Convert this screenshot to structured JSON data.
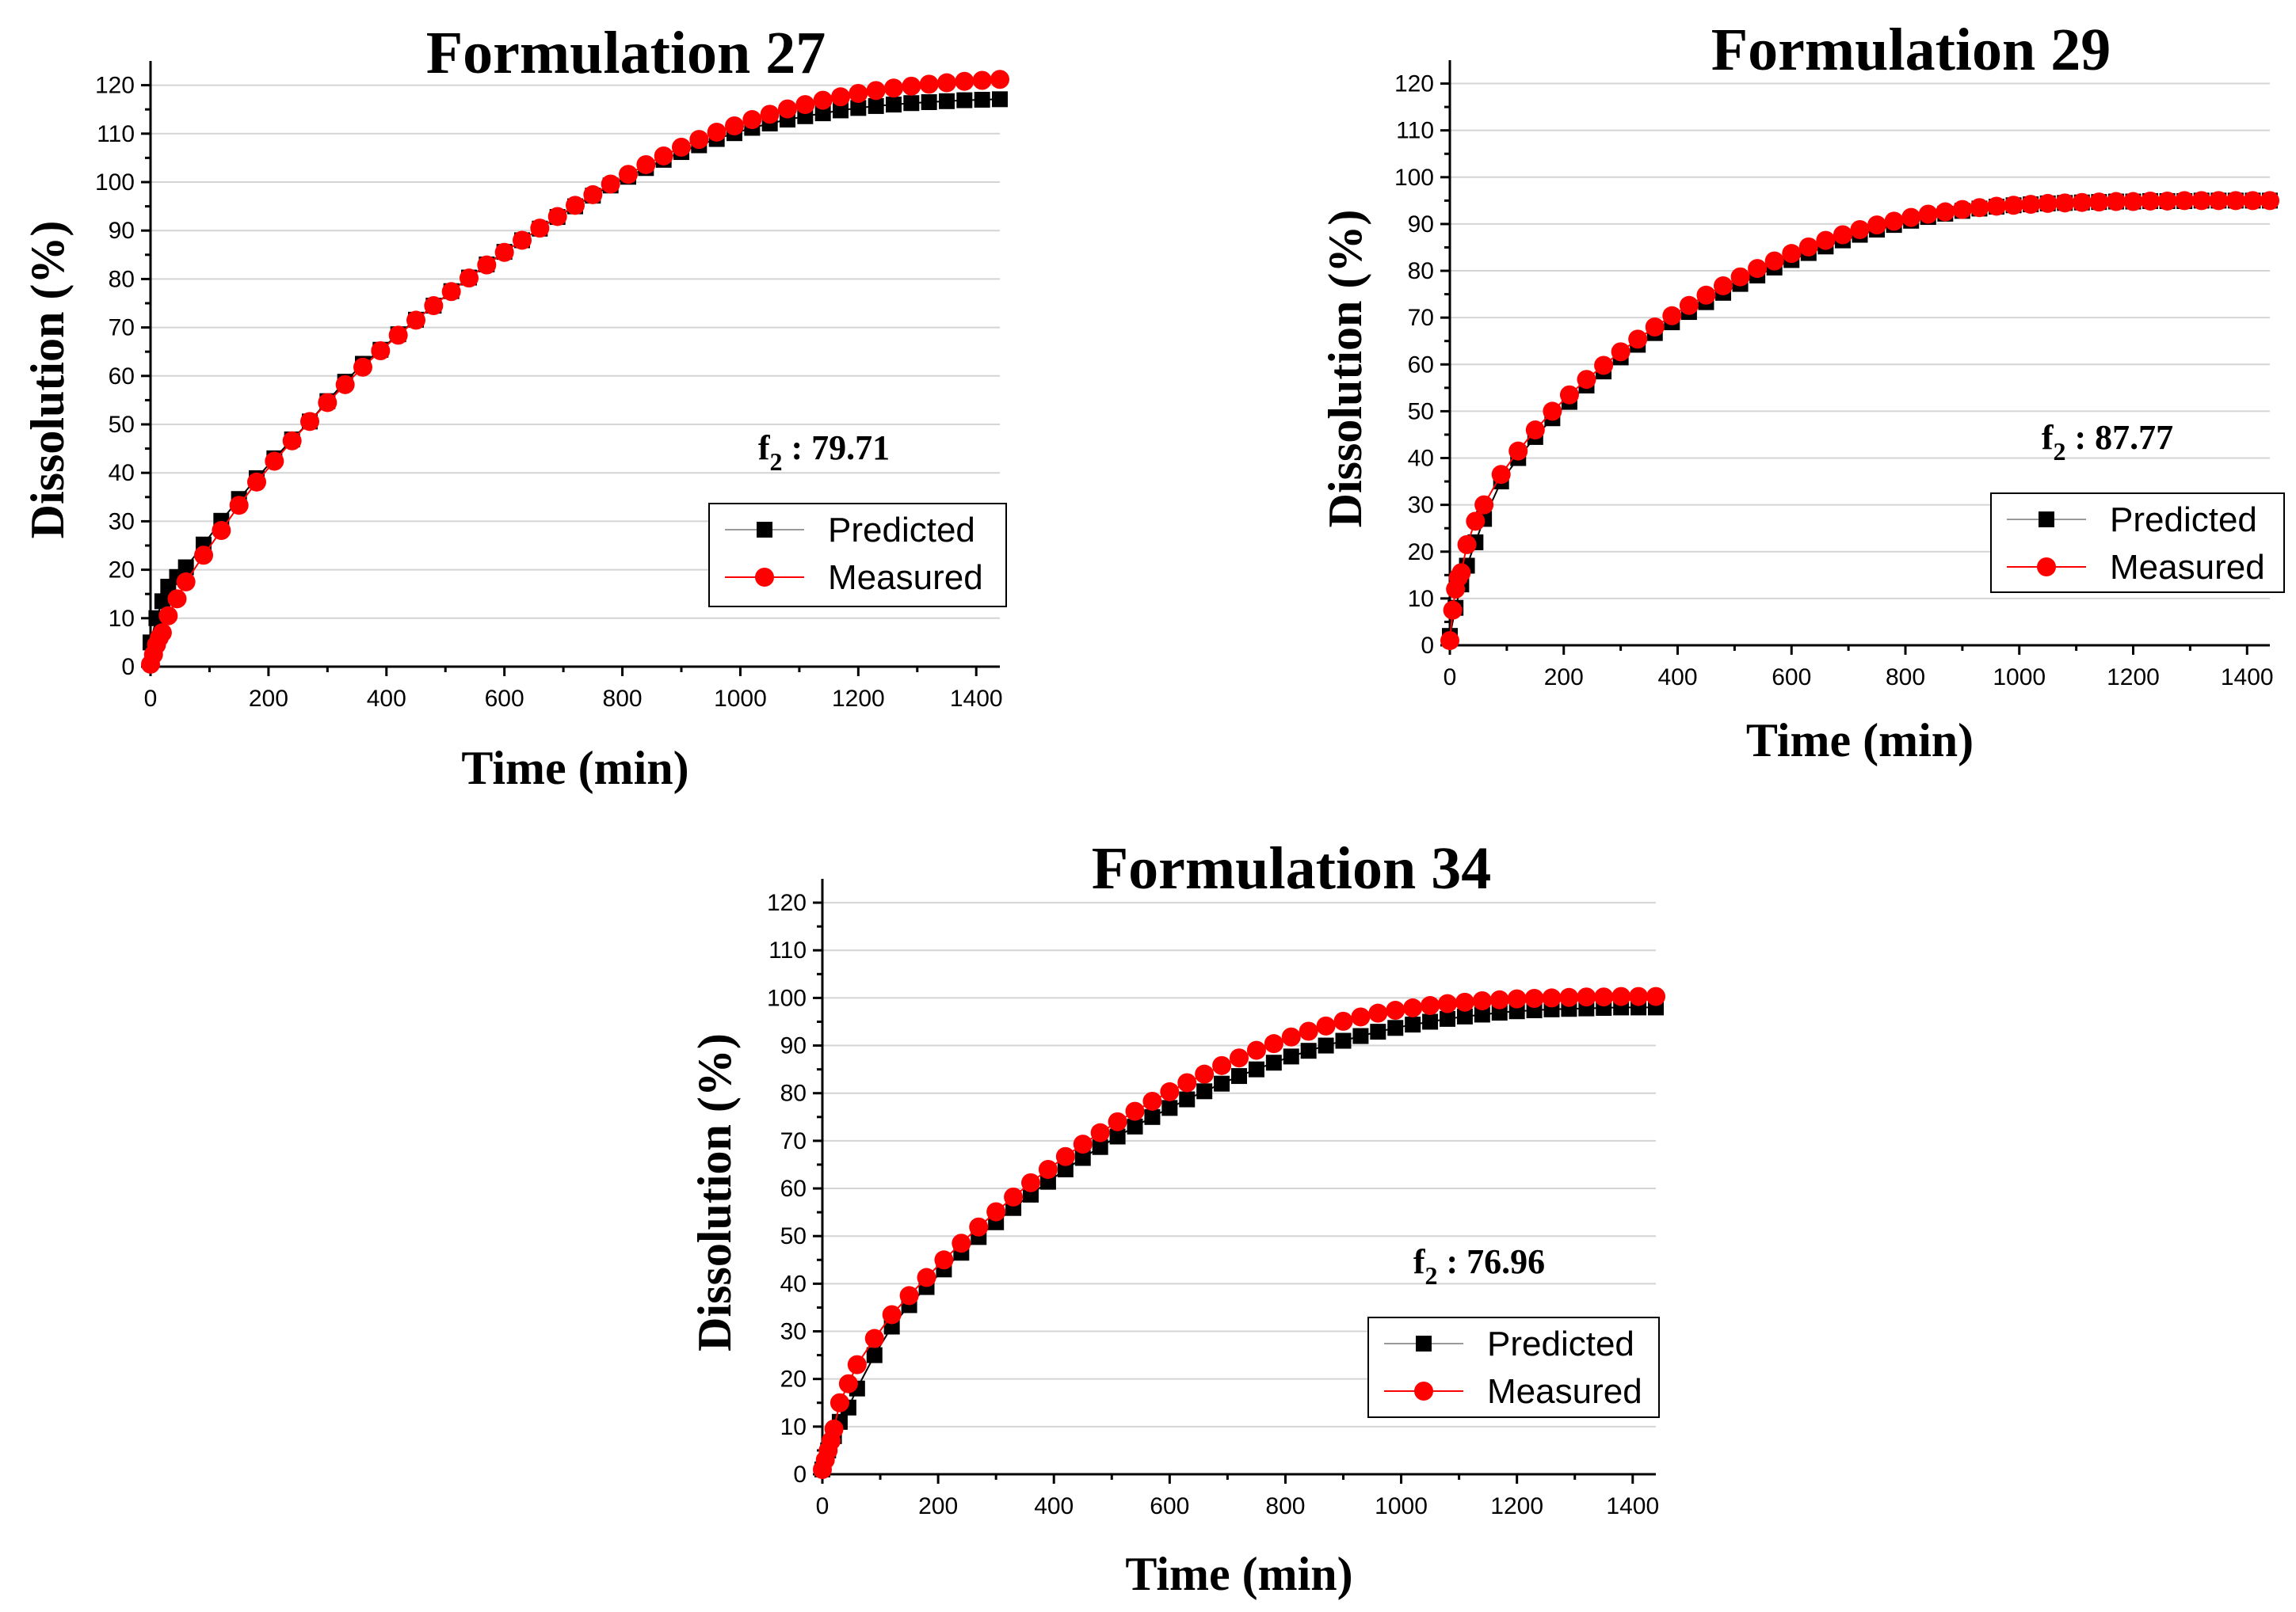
{
  "chart_data": [
    {
      "type": "scatter",
      "title": "Formulation 27",
      "xlabel": "Time (min)",
      "ylabel": "Dissolution (%)",
      "xlim": [
        0,
        1440
      ],
      "ylim": [
        0,
        125
      ],
      "xticks": [
        0,
        200,
        400,
        600,
        800,
        1000,
        1200,
        1400
      ],
      "yticks": [
        0,
        10,
        20,
        30,
        40,
        50,
        60,
        70,
        80,
        90,
        100,
        110,
        120
      ],
      "grid": true,
      "legend_position": "right",
      "annotation": {
        "prefix": "f",
        "subscript": "2",
        "text": " : 79.71"
      },
      "series": [
        {
          "name": "Predicted",
          "color": "#000000",
          "marker": "square",
          "x": [
            0,
            10,
            20,
            30,
            45,
            60,
            90,
            120,
            150,
            180,
            210,
            240,
            270,
            300,
            330,
            360,
            390,
            420,
            450,
            480,
            510,
            540,
            570,
            600,
            630,
            660,
            690,
            720,
            750,
            780,
            810,
            840,
            870,
            900,
            930,
            960,
            990,
            1020,
            1050,
            1080,
            1110,
            1140,
            1170,
            1200,
            1230,
            1260,
            1290,
            1320,
            1350,
            1380,
            1410,
            1440
          ],
          "y": [
            5,
            10,
            13.5,
            16.5,
            18.5,
            20.5,
            25.2,
            30.1,
            34.6,
            38.9,
            43.0,
            46.9,
            50.6,
            54.8,
            58.8,
            62.5,
            65.4,
            68.6,
            71.6,
            74.5,
            77.5,
            80.3,
            83.0,
            85.6,
            88.0,
            90.4,
            92.8,
            95.0,
            97.2,
            99.3,
            101.1,
            102.9,
            104.6,
            106.2,
            107.6,
            108.9,
            110.1,
            111.2,
            112.1,
            112.9,
            113.6,
            114.2,
            114.8,
            115.3,
            115.7,
            116.0,
            116.3,
            116.5,
            116.7,
            116.9,
            117.0,
            117.1
          ]
        },
        {
          "name": "Measured",
          "color": "#ff0000",
          "marker": "circle",
          "x": [
            0,
            5,
            10,
            15,
            20,
            30,
            45,
            60,
            90,
            120,
            150,
            180,
            210,
            240,
            270,
            300,
            330,
            360,
            390,
            420,
            450,
            480,
            510,
            540,
            570,
            600,
            630,
            660,
            690,
            720,
            750,
            780,
            810,
            840,
            870,
            900,
            930,
            960,
            990,
            1020,
            1050,
            1080,
            1110,
            1140,
            1170,
            1200,
            1230,
            1260,
            1290,
            1320,
            1350,
            1380,
            1410,
            1440
          ],
          "y": [
            0.5,
            2.5,
            4.5,
            6,
            7,
            10.5,
            14,
            17.5,
            23.0,
            28.1,
            33.3,
            38.1,
            42.4,
            46.6,
            50.6,
            54.5,
            58.2,
            61.8,
            65.2,
            68.4,
            71.5,
            74.5,
            77.4,
            80.2,
            82.9,
            85.5,
            88.0,
            90.5,
            92.9,
            95.2,
            97.4,
            99.6,
            101.6,
            103.6,
            105.4,
            107.2,
            108.8,
            110.3,
            111.6,
            112.9,
            114.0,
            115.1,
            116.0,
            116.9,
            117.6,
            118.3,
            118.9,
            119.4,
            119.8,
            120.2,
            120.5,
            120.8,
            121.0,
            121.2
          ]
        }
      ]
    },
    {
      "type": "scatter",
      "title": "Formulation 29",
      "xlabel": "Time (min)",
      "ylabel": "Dissolution (%)",
      "xlim": [
        0,
        1440
      ],
      "ylim": [
        0,
        125
      ],
      "xticks": [
        0,
        200,
        400,
        600,
        800,
        1000,
        1200,
        1400
      ],
      "yticks": [
        0,
        10,
        20,
        30,
        40,
        50,
        60,
        70,
        80,
        90,
        100,
        110,
        120
      ],
      "grid": true,
      "legend_position": "right",
      "annotation": {
        "prefix": "f",
        "subscript": "2",
        "text": " : 87.77"
      },
      "series": [
        {
          "name": "Predicted",
          "color": "#000000",
          "marker": "square",
          "x": [
            0,
            10,
            20,
            30,
            45,
            60,
            90,
            120,
            150,
            180,
            210,
            240,
            270,
            300,
            330,
            360,
            390,
            420,
            450,
            480,
            510,
            540,
            570,
            600,
            630,
            660,
            690,
            720,
            750,
            780,
            810,
            840,
            870,
            900,
            930,
            960,
            990,
            1020,
            1050,
            1080,
            1110,
            1140,
            1170,
            1200,
            1230,
            1260,
            1290,
            1320,
            1350,
            1380,
            1410,
            1440
          ],
          "y": [
            2,
            8,
            13,
            17,
            22,
            27,
            35,
            40,
            44.5,
            48.5,
            52,
            55.5,
            58.5,
            61.5,
            64.2,
            66.7,
            69.0,
            71.2,
            73.3,
            75.3,
            77.2,
            79.0,
            80.7,
            82.3,
            83.8,
            85.2,
            86.5,
            87.7,
            88.8,
            89.8,
            90.7,
            91.5,
            92.2,
            92.8,
            93.3,
            93.7,
            94.0,
            94.2,
            94.4,
            94.5,
            94.6,
            94.7,
            94.8,
            94.8,
            94.9,
            94.9,
            94.9,
            95.0,
            95.0,
            95.0,
            95.0,
            95.0
          ]
        },
        {
          "name": "Measured",
          "color": "#ff0000",
          "marker": "circle",
          "x": [
            0,
            5,
            10,
            15,
            20,
            30,
            45,
            60,
            90,
            120,
            150,
            180,
            210,
            240,
            270,
            300,
            330,
            360,
            390,
            420,
            450,
            480,
            510,
            540,
            570,
            600,
            630,
            660,
            690,
            720,
            750,
            780,
            810,
            840,
            870,
            900,
            930,
            960,
            990,
            1020,
            1050,
            1080,
            1110,
            1140,
            1170,
            1200,
            1230,
            1260,
            1290,
            1320,
            1350,
            1380,
            1410,
            1440
          ],
          "y": [
            1,
            7.5,
            12,
            14.5,
            15.5,
            21.5,
            26.5,
            30,
            36.5,
            41.5,
            46,
            50,
            53.5,
            56.8,
            59.8,
            62.7,
            65.4,
            68.0,
            70.4,
            72.6,
            74.8,
            76.8,
            78.7,
            80.5,
            82.1,
            83.7,
            85.1,
            86.5,
            87.7,
            88.8,
            89.8,
            90.6,
            91.4,
            92.1,
            92.6,
            93.1,
            93.5,
            93.8,
            94.0,
            94.2,
            94.4,
            94.5,
            94.6,
            94.7,
            94.8,
            94.8,
            94.9,
            94.9,
            95.0,
            95.0,
            95.0,
            95.0,
            95.0,
            95.0
          ]
        }
      ]
    },
    {
      "type": "scatter",
      "title": "Formulation 34",
      "xlabel": "Time (min)",
      "ylabel": "Dissolution (%)",
      "xlim": [
        0,
        1440
      ],
      "ylim": [
        0,
        125
      ],
      "xticks": [
        0,
        200,
        400,
        600,
        800,
        1000,
        1200,
        1400
      ],
      "yticks": [
        0,
        10,
        20,
        30,
        40,
        50,
        60,
        70,
        80,
        90,
        100,
        110,
        120
      ],
      "grid": true,
      "legend_position": "right",
      "annotation": {
        "prefix": "f",
        "subscript": "2",
        "text": " : 76.96"
      },
      "series": [
        {
          "name": "Predicted",
          "color": "#000000",
          "marker": "square",
          "x": [
            0,
            10,
            20,
            30,
            45,
            60,
            90,
            120,
            150,
            180,
            210,
            240,
            270,
            300,
            330,
            360,
            390,
            420,
            450,
            480,
            510,
            540,
            570,
            600,
            630,
            660,
            690,
            720,
            750,
            780,
            810,
            840,
            870,
            900,
            930,
            960,
            990,
            1020,
            1050,
            1080,
            1110,
            1140,
            1170,
            1200,
            1230,
            1260,
            1290,
            1320,
            1350,
            1380,
            1410,
            1440
          ],
          "y": [
            1,
            5,
            8,
            11,
            14,
            18,
            25,
            31,
            35.5,
            39.3,
            43.0,
            46.5,
            49.8,
            52.9,
            55.9,
            58.7,
            61.4,
            64.0,
            66.4,
            68.7,
            70.9,
            73.0,
            75.0,
            76.9,
            78.7,
            80.4,
            82.0,
            83.6,
            85.0,
            86.4,
            87.7,
            88.9,
            90.0,
            91.0,
            92.0,
            92.9,
            93.7,
            94.4,
            95.0,
            95.6,
            96.1,
            96.5,
            96.9,
            97.2,
            97.4,
            97.6,
            97.7,
            97.8,
            97.9,
            98.0,
            98.0,
            98.0
          ]
        },
        {
          "name": "Measured",
          "color": "#ff0000",
          "marker": "circle",
          "x": [
            0,
            5,
            10,
            15,
            20,
            30,
            45,
            60,
            90,
            120,
            150,
            180,
            210,
            240,
            270,
            300,
            330,
            360,
            390,
            420,
            450,
            480,
            510,
            540,
            570,
            600,
            630,
            660,
            690,
            720,
            750,
            780,
            810,
            840,
            870,
            900,
            930,
            960,
            990,
            1020,
            1050,
            1080,
            1110,
            1140,
            1170,
            1200,
            1230,
            1260,
            1290,
            1320,
            1350,
            1380,
            1410,
            1440
          ],
          "y": [
            1,
            3,
            5,
            7,
            9.5,
            15,
            19,
            23,
            28.5,
            33.5,
            37.5,
            41.3,
            45.0,
            48.5,
            51.9,
            55.1,
            58.2,
            61.2,
            64.0,
            66.7,
            69.3,
            71.7,
            74.0,
            76.2,
            78.3,
            80.3,
            82.2,
            84.0,
            85.8,
            87.4,
            89.0,
            90.4,
            91.8,
            93.0,
            94.1,
            95.1,
            96.0,
            96.8,
            97.4,
            97.9,
            98.4,
            98.8,
            99.1,
            99.4,
            99.6,
            99.8,
            99.9,
            100.0,
            100.1,
            100.2,
            100.2,
            100.3,
            100.3,
            100.3
          ]
        }
      ]
    }
  ]
}
